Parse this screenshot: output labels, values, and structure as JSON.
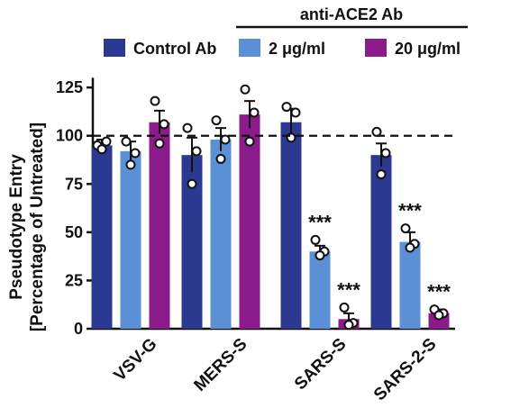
{
  "chart_data": {
    "type": "bar",
    "ylabel_line1": "Pseudotype Entry",
    "ylabel_line2": "[Percentage of Untreated]",
    "legend_group_label": "anti-ACE2 Ab",
    "ylim": [
      0,
      140
    ],
    "yticks": [
      "0",
      "25",
      "50",
      "75",
      "100",
      "125"
    ],
    "reference_line": 100,
    "categories": [
      "VSV-G",
      "MERS-S",
      "SARS-S",
      "SARS-2-S"
    ],
    "series": [
      {
        "name": "Control Ab",
        "color": "#2b3990",
        "values": [
          95,
          90,
          107,
          90
        ],
        "errors": [
          3,
          9,
          7,
          6
        ],
        "points": [
          [
            95,
            97,
            93
          ],
          [
            104,
            92,
            75
          ],
          [
            115,
            112,
            99
          ],
          [
            102,
            91,
            80
          ]
        ],
        "significance": [
          "",
          "",
          "",
          ""
        ]
      },
      {
        "name": "2 μg/ml",
        "color": "#5b8fd6",
        "values": [
          92,
          98,
          40,
          45
        ],
        "errors": [
          5,
          6,
          3,
          5
        ],
        "points": [
          [
            97,
            91,
            85
          ],
          [
            108,
            98,
            88
          ],
          [
            46,
            40,
            38
          ],
          [
            52,
            44,
            42
          ]
        ],
        "significance": [
          "",
          "",
          "***",
          "***"
        ]
      },
      {
        "name": "20 μg/ml",
        "color": "#8b1a8b",
        "values": [
          107,
          111,
          5,
          8
        ],
        "errors": [
          6,
          7,
          3,
          2
        ],
        "points": [
          [
            118,
            106,
            96
          ],
          [
            124,
            112,
            97
          ],
          [
            11,
            3,
            2
          ],
          [
            10,
            8,
            7
          ]
        ],
        "significance": [
          "",
          "",
          "***",
          "***"
        ]
      }
    ]
  }
}
